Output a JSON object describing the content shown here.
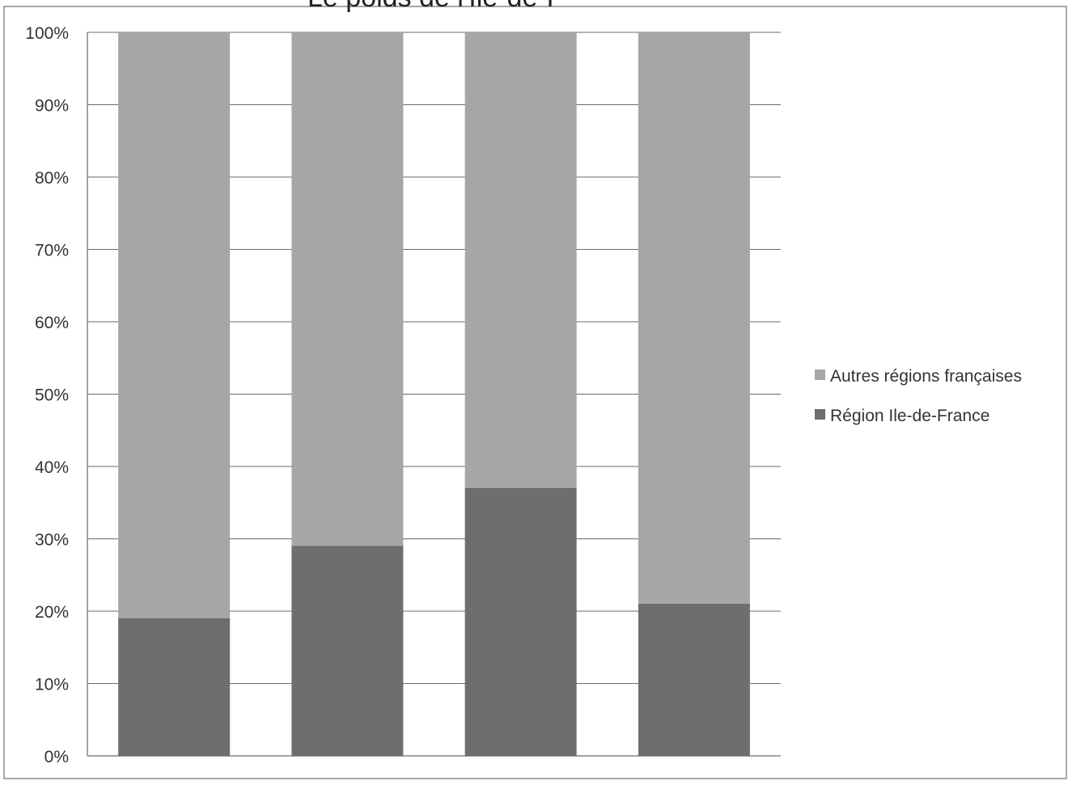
{
  "chart_data": {
    "type": "bar",
    "stacked": true,
    "categories": [
      "",
      "",
      "",
      ""
    ],
    "series": [
      {
        "name": "Région Ile-de-France",
        "values": [
          19,
          29,
          37,
          21
        ],
        "color": "#6e6e6e"
      },
      {
        "name": "Autres régions françaises",
        "values": [
          81,
          71,
          63,
          79
        ],
        "color": "#a6a6a6"
      }
    ],
    "ylim": [
      0,
      100
    ],
    "yticks": [
      0,
      10,
      20,
      30,
      40,
      50,
      60,
      70,
      80,
      90,
      100
    ],
    "ytick_labels": [
      "0%",
      "10%",
      "20%",
      "30%",
      "40%",
      "50%",
      "60%",
      "70%",
      "80%",
      "90%",
      "100%"
    ],
    "grid": true,
    "legend_position": "right",
    "legend": [
      "Autres régions françaises",
      "Région Ile-de-France"
    ],
    "title_fragment": "Le poids de l'Ile-de-F"
  }
}
